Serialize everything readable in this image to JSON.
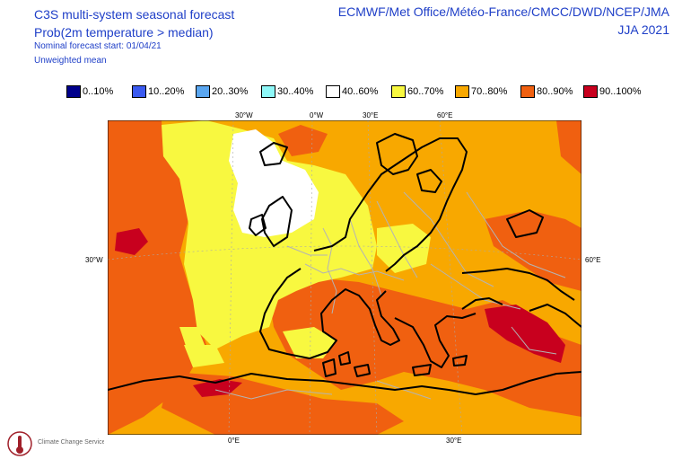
{
  "header": {
    "title": "C3S multi-system seasonal forecast",
    "subtitle": "Prob(2m temperature > median)",
    "start": "Nominal forecast start: 01/04/21",
    "mean": "Unweighted mean",
    "providers": "ECMWF/Met Office/Météo-France/CMCC/DWD/NCEP/JMA",
    "season": "JJA 2021"
  },
  "legend": [
    {
      "label": "0..10%",
      "color": "#00008b"
    },
    {
      "label": "10..20%",
      "color": "#3a5af0"
    },
    {
      "label": "20..30%",
      "color": "#5aa6f0"
    },
    {
      "label": "30..40%",
      "color": "#8ff8f8"
    },
    {
      "label": "40..60%",
      "color": "#ffffff"
    },
    {
      "label": "60..70%",
      "color": "#f8f840"
    },
    {
      "label": "70..80%",
      "color": "#f8a800"
    },
    {
      "label": "80..90%",
      "color": "#f06010"
    },
    {
      "label": "90..100%",
      "color": "#c8001e"
    }
  ],
  "graticule": {
    "top": [
      "30°W",
      "0°W",
      "30°E",
      "60°E"
    ],
    "left": "30°W",
    "right": "60°E",
    "bottom": [
      "0°E",
      "30°E"
    ]
  },
  "map": {
    "colors": {
      "background": "#f8a800",
      "very_high": "#c8001e",
      "high": "#f06010",
      "moderate": "#f8a800",
      "low": "#f8f840",
      "neutral": "#ffffff",
      "coast": "#000000",
      "border": "#b4b4b4",
      "graticule": "#aaaaaa"
    }
  },
  "logo": {
    "text": "Climate Change Service",
    "color": "#a0202a"
  }
}
